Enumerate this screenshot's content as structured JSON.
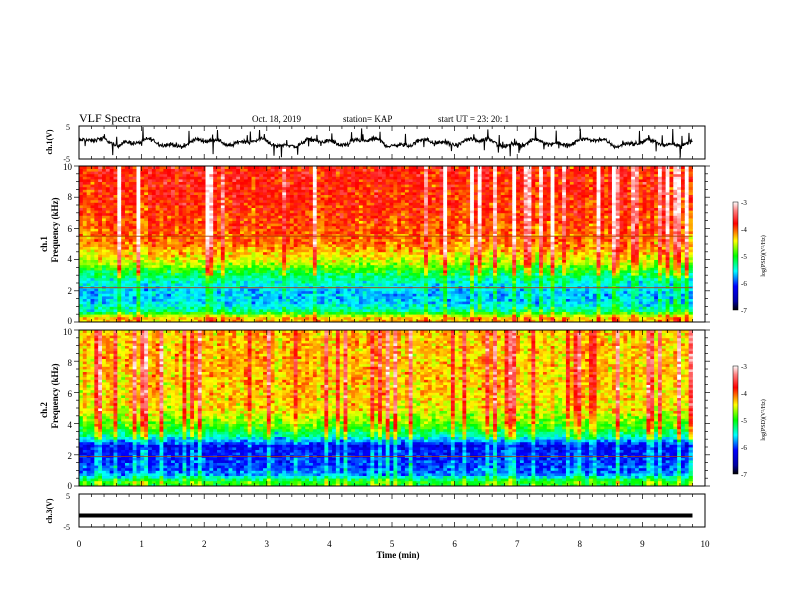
{
  "header": {
    "title": "VLF Spectra",
    "date": "Oct. 18, 2019",
    "station": "station= KAP",
    "start": "start  UT  =   23: 20: 1"
  },
  "chart_data": [
    {
      "type": "line",
      "panel": "ch1-waveform",
      "ylabel": "ch.1(V)",
      "ylim": [
        -5,
        5
      ],
      "yticks": [
        "5",
        "-5"
      ],
      "xlim": [
        0,
        10
      ],
      "series": [
        {
          "description_visible": "noisy voltage trace",
          "typical_range": [
            -1.5,
            1.5
          ],
          "spike_range": [
            -4.5,
            4.5
          ],
          "x_end": 9.8
        }
      ],
      "color": "#000000"
    },
    {
      "type": "heatmap",
      "panel": "ch1-spectrogram",
      "ylabel": "Frequency (kHz)",
      "ylabel2": "ch.1",
      "ylim": [
        0,
        10
      ],
      "yticks": [
        "0",
        "2",
        "4",
        "6",
        "8",
        "10"
      ],
      "xlim": [
        0,
        9.8
      ],
      "profile": [
        {
          "f": 0.3,
          "level": -4.3
        },
        {
          "f": 0.7,
          "level": -5.3
        },
        {
          "f": 1.2,
          "level": -5.6
        },
        {
          "f": 1.8,
          "level": -5.7
        },
        {
          "f": 2.5,
          "level": -5.5
        },
        {
          "f": 3.2,
          "level": -5.1
        },
        {
          "f": 3.8,
          "level": -4.6
        },
        {
          "f": 5.0,
          "level": -4.1
        },
        {
          "f": 7.0,
          "level": -3.9
        },
        {
          "f": 9.5,
          "level": -3.8
        }
      ],
      "lines_khz": [
        2.2,
        5.5
      ],
      "colorbar": {
        "label": "log(PSD)(V²/Hz)",
        "range": [
          -7,
          -3
        ],
        "ticks": [
          "-3",
          "-4",
          "-5",
          "-6",
          "-7"
        ]
      }
    },
    {
      "type": "heatmap",
      "panel": "ch2-spectrogram",
      "ylabel": "Frequency (kHz)",
      "ylabel2": "ch.2",
      "ylim": [
        0,
        10
      ],
      "yticks": [
        "0",
        "2",
        "4",
        "6",
        "8",
        "10"
      ],
      "xlim": [
        0,
        9.8
      ],
      "profile": [
        {
          "f": 0.3,
          "level": -5.0
        },
        {
          "f": 0.8,
          "level": -5.9
        },
        {
          "f": 1.4,
          "level": -6.0
        },
        {
          "f": 2.0,
          "level": -6.1
        },
        {
          "f": 2.6,
          "level": -6.2
        },
        {
          "f": 3.2,
          "level": -5.4
        },
        {
          "f": 3.8,
          "level": -4.9
        },
        {
          "f": 5.0,
          "level": -4.4
        },
        {
          "f": 7.0,
          "level": -4.3
        },
        {
          "f": 9.5,
          "level": -4.3
        }
      ],
      "lines_khz": [
        1.9
      ],
      "colorbar": {
        "label": "log(PSD)(V²/Hz)",
        "range": [
          -7,
          -3
        ],
        "ticks": [
          "-3",
          "-4",
          "-5",
          "-6",
          "-7"
        ]
      }
    },
    {
      "type": "line",
      "panel": "ch3-waveform",
      "ylabel": "ch.3(V)",
      "ylim": [
        -5,
        5
      ],
      "yticks": [
        "5",
        "-5"
      ],
      "xlim": [
        0,
        10
      ],
      "series": [
        {
          "description_visible": "flat line",
          "value": -1.5,
          "x_end": 9.8
        }
      ],
      "xlabel": "Time (min)",
      "xticks": [
        "0",
        "1",
        "2",
        "3",
        "4",
        "5",
        "6",
        "7",
        "8",
        "9",
        "10"
      ],
      "color": "#000000"
    }
  ],
  "colors": {
    "axis": "#000000",
    "trace": "#000000",
    "background": "#ffffff"
  }
}
